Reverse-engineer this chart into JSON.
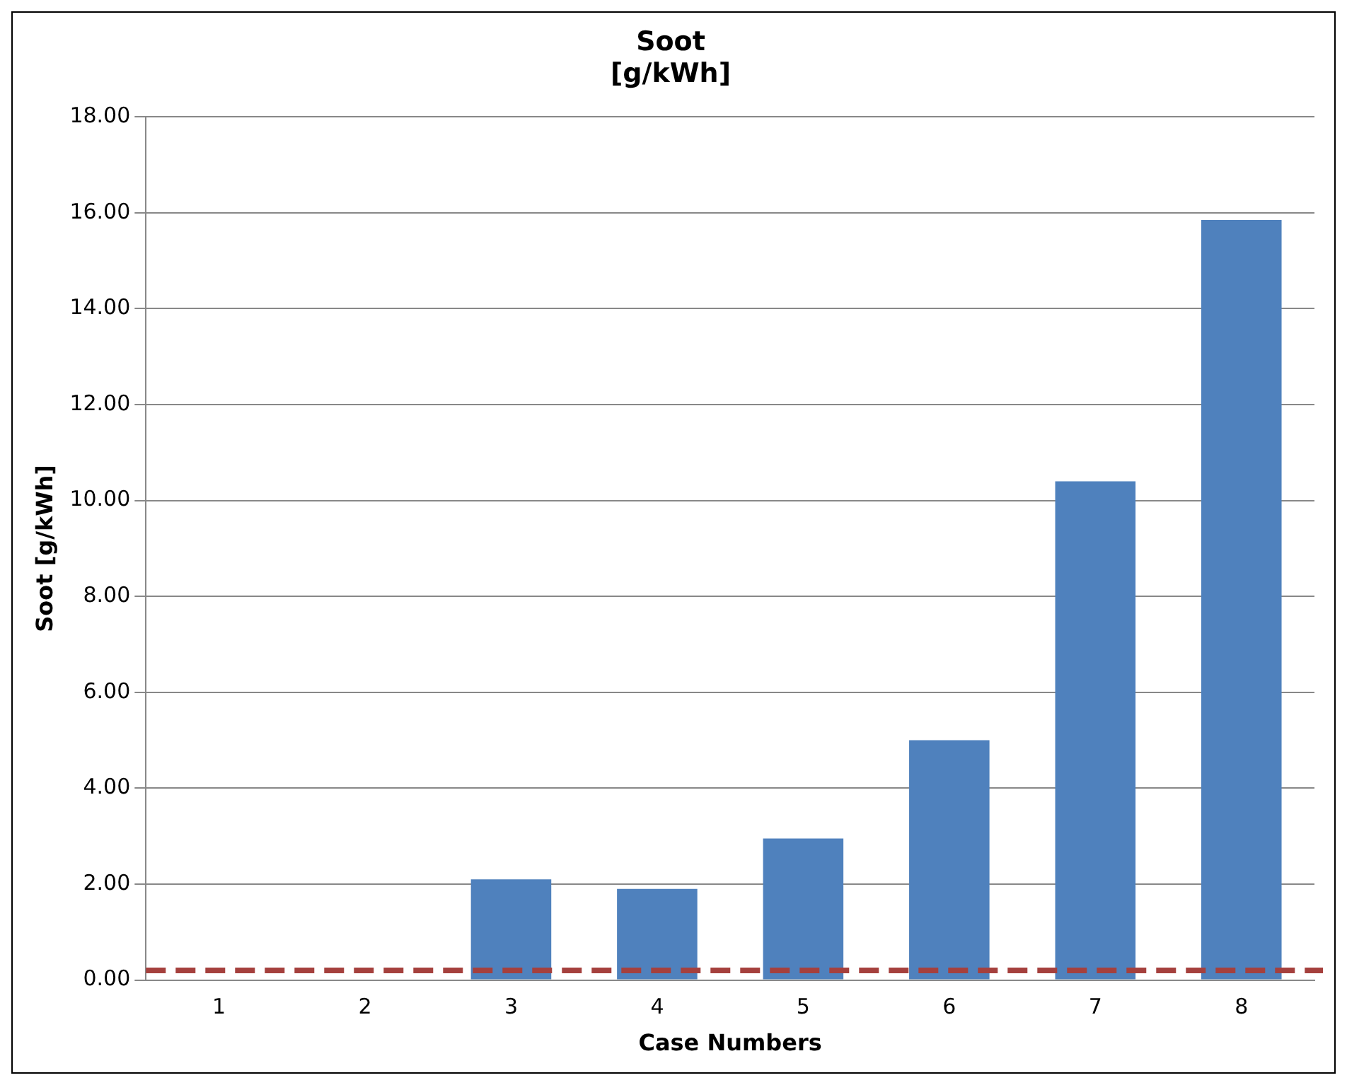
{
  "chart_data": {
    "type": "bar",
    "title": "Soot\n[g/kWh]",
    "xlabel": "Case Numbers",
    "ylabel": "Soot [g/kWh]",
    "categories": [
      "1",
      "2",
      "3",
      "4",
      "5",
      "6",
      "7",
      "8"
    ],
    "values": [
      0,
      0,
      2.1,
      1.9,
      2.95,
      5.0,
      10.4,
      15.85
    ],
    "color": "#4f81bd",
    "ylim": [
      0,
      18
    ],
    "yticks": [
      {
        "value": 0,
        "label": "0.00"
      },
      {
        "value": 2,
        "label": "2.00"
      },
      {
        "value": 4,
        "label": "4.00"
      },
      {
        "value": 6,
        "label": "6.00"
      },
      {
        "value": 8,
        "label": "8.00"
      },
      {
        "value": 10,
        "label": "10.00"
      },
      {
        "value": 12,
        "label": "12.00"
      },
      {
        "value": 14,
        "label": "14.00"
      },
      {
        "value": 16,
        "label": "16.00"
      },
      {
        "value": 18,
        "label": "18.00"
      }
    ],
    "grid": "y",
    "legend": false,
    "ref_lines": [
      {
        "axis": "y",
        "value": 0.2,
        "color": "#a5403d",
        "line_style": "dashed"
      }
    ]
  }
}
